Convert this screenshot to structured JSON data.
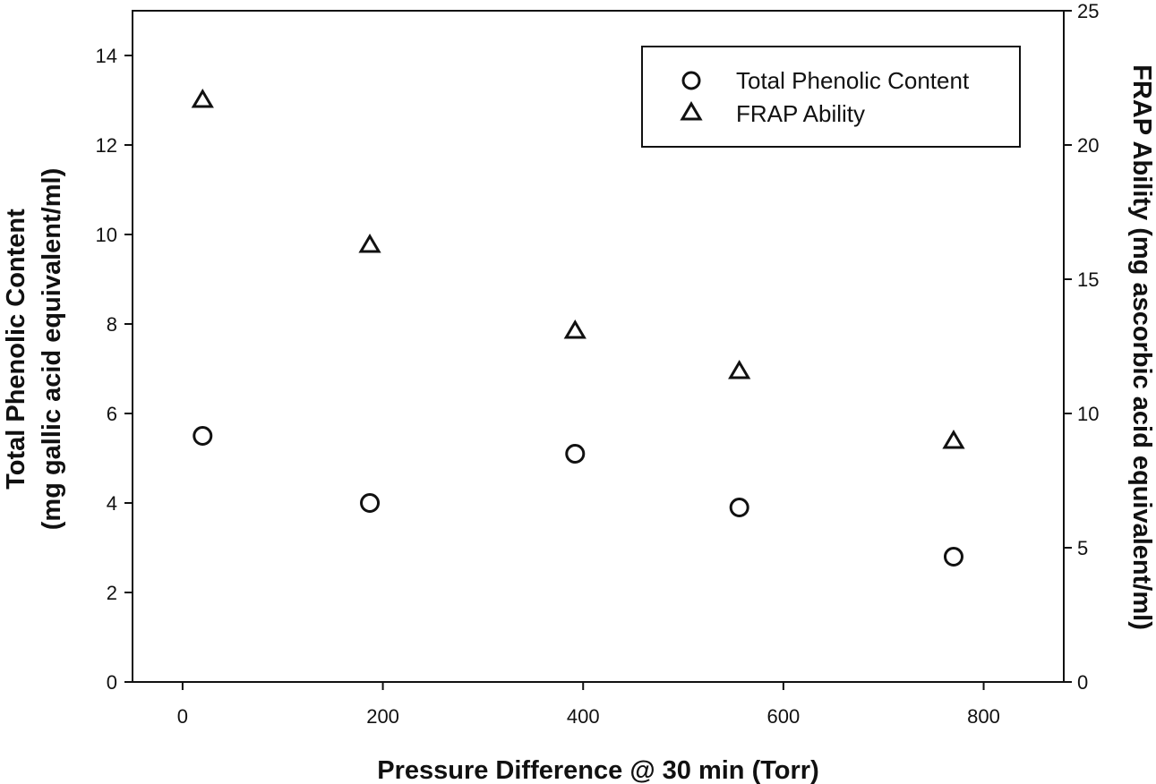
{
  "chart_data": {
    "type": "scatter",
    "title": "",
    "xlabel": "Pressure Difference @ 30 min (Torr)",
    "ylabel_left_line1": "Total Phenolic Content",
    "ylabel_left_line2": "(mg gallic acid equivalent/ml)",
    "ylabel_right": "FRAP Ability (mg ascorbic acid equivalent/ml)",
    "xlim": [
      -50,
      880
    ],
    "ylim_left": [
      0,
      15
    ],
    "ylim_right": [
      0,
      25
    ],
    "x_ticks": [
      0,
      200,
      400,
      600,
      800
    ],
    "y_left_ticks": [
      0,
      2,
      4,
      6,
      8,
      10,
      12,
      14
    ],
    "y_right_ticks": [
      0,
      5,
      10,
      15,
      20,
      25
    ],
    "legend_position": "top-right",
    "series": [
      {
        "name": "Total Phenolic Content",
        "marker": "circle",
        "axis": "left",
        "x": [
          20,
          187,
          392,
          556,
          770
        ],
        "y": [
          5.5,
          4.0,
          5.1,
          3.9,
          2.8
        ]
      },
      {
        "name": "FRAP Ability",
        "marker": "triangle",
        "axis": "right",
        "x": [
          20,
          187,
          392,
          556,
          770
        ],
        "y": [
          21.7,
          16.3,
          13.1,
          11.6,
          9.0
        ]
      }
    ]
  }
}
